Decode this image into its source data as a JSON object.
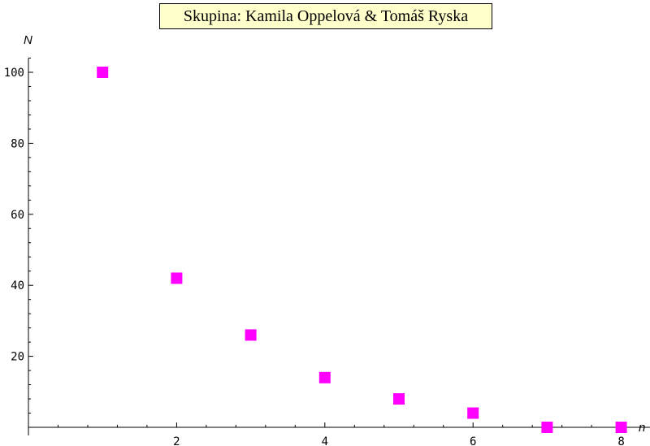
{
  "chart_data": {
    "type": "scatter",
    "title": "Skupina: Kamila Oppelová & Tomáš Ryska",
    "xlabel": "n",
    "ylabel": "N",
    "xlim": [
      0,
      8.3
    ],
    "ylim": [
      0,
      104
    ],
    "x_ticks": [
      2,
      4,
      6,
      8
    ],
    "y_ticks": [
      20,
      40,
      60,
      80,
      100
    ],
    "grid": false,
    "marker": "square",
    "marker_color": "#ff00ff",
    "series": [
      {
        "x": [
          1,
          2,
          3,
          4,
          5,
          6,
          7,
          8
        ],
        "y": [
          100,
          42,
          26,
          14,
          8,
          4,
          0,
          0
        ]
      }
    ]
  }
}
